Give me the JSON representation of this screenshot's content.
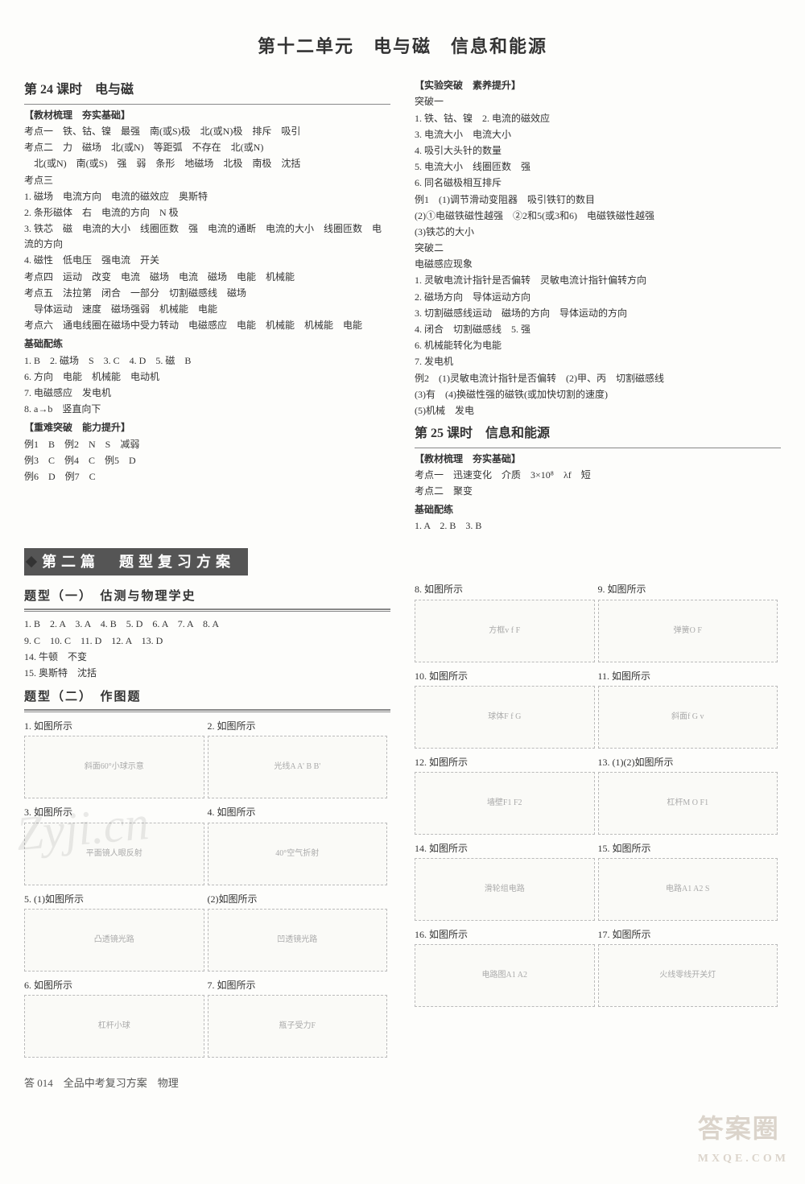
{
  "unit_title": "第十二单元　电与磁　信息和能源",
  "left": {
    "lesson24_header": "第 24 课时　电与磁",
    "sec1_label": "【教材梳理　夯实基础】",
    "kd1": "考点一　铁、钴、镍　最强　南(或S)极　北(或N)极　排斥　吸引",
    "kd2a": "考点二　力　磁场　北(或N)　等距弧　不存在　北(或N)",
    "kd2b": "北(或N)　南(或S)　强　弱　条形　地磁场　北极　南极　沈括",
    "kd3_lbl": "考点三",
    "kd3_1": "1. 磁场　电流方向　电流的磁效应　奥斯特",
    "kd3_2": "2. 条形磁体　右　电流的方向　N 极",
    "kd3_3": "3. 铁芯　磁　电流的大小　线圈匝数　强　电流的通断　电流的大小　线圈匝数　电流的方向",
    "kd3_4": "4. 磁性　低电压　强电流　开关",
    "kd4": "考点四　运动　改变　电流　磁场　电流　磁场　电能　机械能",
    "kd5": "考点五　法拉第　闭合　一部分　切割磁感线　磁场",
    "kd5b": "导体运动　速度　磁场强弱　机械能　电能",
    "kd6": "考点六　通电线圈在磁场中受力转动　电磁感应　电能　机械能　机械能　电能",
    "base_lbl": "基础配练",
    "b1": "1. B　2. 磁场　S　3. C　4. D　5. 磁　B",
    "b2": "6. 方向　电能　机械能　电动机",
    "b3": "7. 电磁感应　发电机",
    "b4": "8. a→b　竖直向下",
    "hard_lbl": "【重难突破　能力提升】",
    "h1": "例1　B　例2　N　S　减弱",
    "h2": "例3　C　例4　C　例5　D",
    "h3": "例6　D　例7　C"
  },
  "right": {
    "exp_lbl": "【实验突破　素养提升】",
    "t1_lbl": "突破一",
    "t1_1": "1. 铁、钴、镍　2. 电流的磁效应",
    "t1_2": "3. 电流大小　电流大小",
    "t1_3": "4. 吸引大头针的数量",
    "t1_4": "5. 电流大小　线圈匝数　强",
    "t1_5": "6. 同名磁极相互排斥",
    "t1_ex1a": "例1　(1)调节滑动变阻器　吸引铁钉的数目",
    "t1_ex1b": "(2)①电磁铁磁性越强　②2和5(或3和6)　电磁铁磁性越强",
    "t1_ex1c": "(3)铁芯的大小",
    "t2_lbl": "突破二",
    "t2_sub": "电磁感应现象",
    "t2_1": "1. 灵敏电流计指针是否偏转　灵敏电流计指针偏转方向",
    "t2_2": "2. 磁场方向　导体运动方向",
    "t2_3": "3. 切割磁感线运动　磁场的方向　导体运动的方向",
    "t2_4": "4. 闭合　切割磁感线　5. 强",
    "t2_5": "6. 机械能转化为电能",
    "t2_6": "7. 发电机",
    "t2_ex2a": "例2　(1)灵敏电流计指针是否偏转　(2)甲、丙　切割磁感线",
    "t2_ex2b": "(3)有　(4)换磁性强的磁铁(或加快切割的速度)",
    "t2_ex2c": "(5)机械　发电",
    "lesson25_header": "第 25 课时　信息和能源",
    "sec25_label": "【教材梳理　夯实基础】",
    "l25_k1": "考点一　迅速变化　介质　3×10⁸　λf　短",
    "l25_k2": "考点二　聚变",
    "l25_base_lbl": "基础配练",
    "l25_b1": "1. A　2. B　3. B"
  },
  "part2": {
    "banner": "第二篇　题型复习方案",
    "type1_header": "题型（一）　估测与物理学史",
    "t1_line1": "1. B　2. A　3. A　4. B　5. D　6. A　7. A　8. A",
    "t1_line2": "9. C　10. C　11. D　12. A　13. D",
    "t1_line3": "14. 牛顿　不变",
    "t1_line4": "15. 奥斯特　沈括",
    "type2_header": "题型（二）　作图题",
    "figsL": [
      {
        "label": "1. 如图所示",
        "hint": "斜面60°小球示意"
      },
      {
        "label": "2. 如图所示",
        "hint": "光线A A' B B'"
      },
      {
        "label": "3. 如图所示",
        "hint": "平面镜人眼反射"
      },
      {
        "label": "4. 如图所示",
        "hint": "40°空气折射"
      },
      {
        "label": "5. (1)如图所示",
        "hint": "凸透镜光路"
      },
      {
        "label": "(2)如图所示",
        "hint": "凹透镜光路"
      },
      {
        "label": "6. 如图所示",
        "hint": "杠杆小球"
      },
      {
        "label": "7. 如图所示",
        "hint": "瓶子受力F"
      }
    ],
    "figsR": [
      {
        "label": "8. 如图所示",
        "hint": "方框v f F"
      },
      {
        "label": "9. 如图所示",
        "hint": "弹簧O F"
      },
      {
        "label": "10. 如图所示",
        "hint": "球体F f G"
      },
      {
        "label": "11. 如图所示",
        "hint": "斜面f G v"
      },
      {
        "label": "12. 如图所示",
        "hint": "墙壁F1 F2"
      },
      {
        "label": "13. (1)(2)如图所示",
        "hint": "杠杆M O F1"
      },
      {
        "label": "14. 如图所示",
        "hint": "滑轮组电路"
      },
      {
        "label": "15. 如图所示",
        "hint": "电路A1 A2 S"
      },
      {
        "label": "16. 如图所示",
        "hint": "电路图A1 A2"
      },
      {
        "label": "17. 如图所示",
        "hint": "火线零线开关灯"
      }
    ]
  },
  "footer": "答 014　全品中考复习方案　物理",
  "watermarks": {
    "zjcn": "Zyji.cn",
    "daq": "答案圈",
    "mxqe": "MXQE.COM"
  }
}
